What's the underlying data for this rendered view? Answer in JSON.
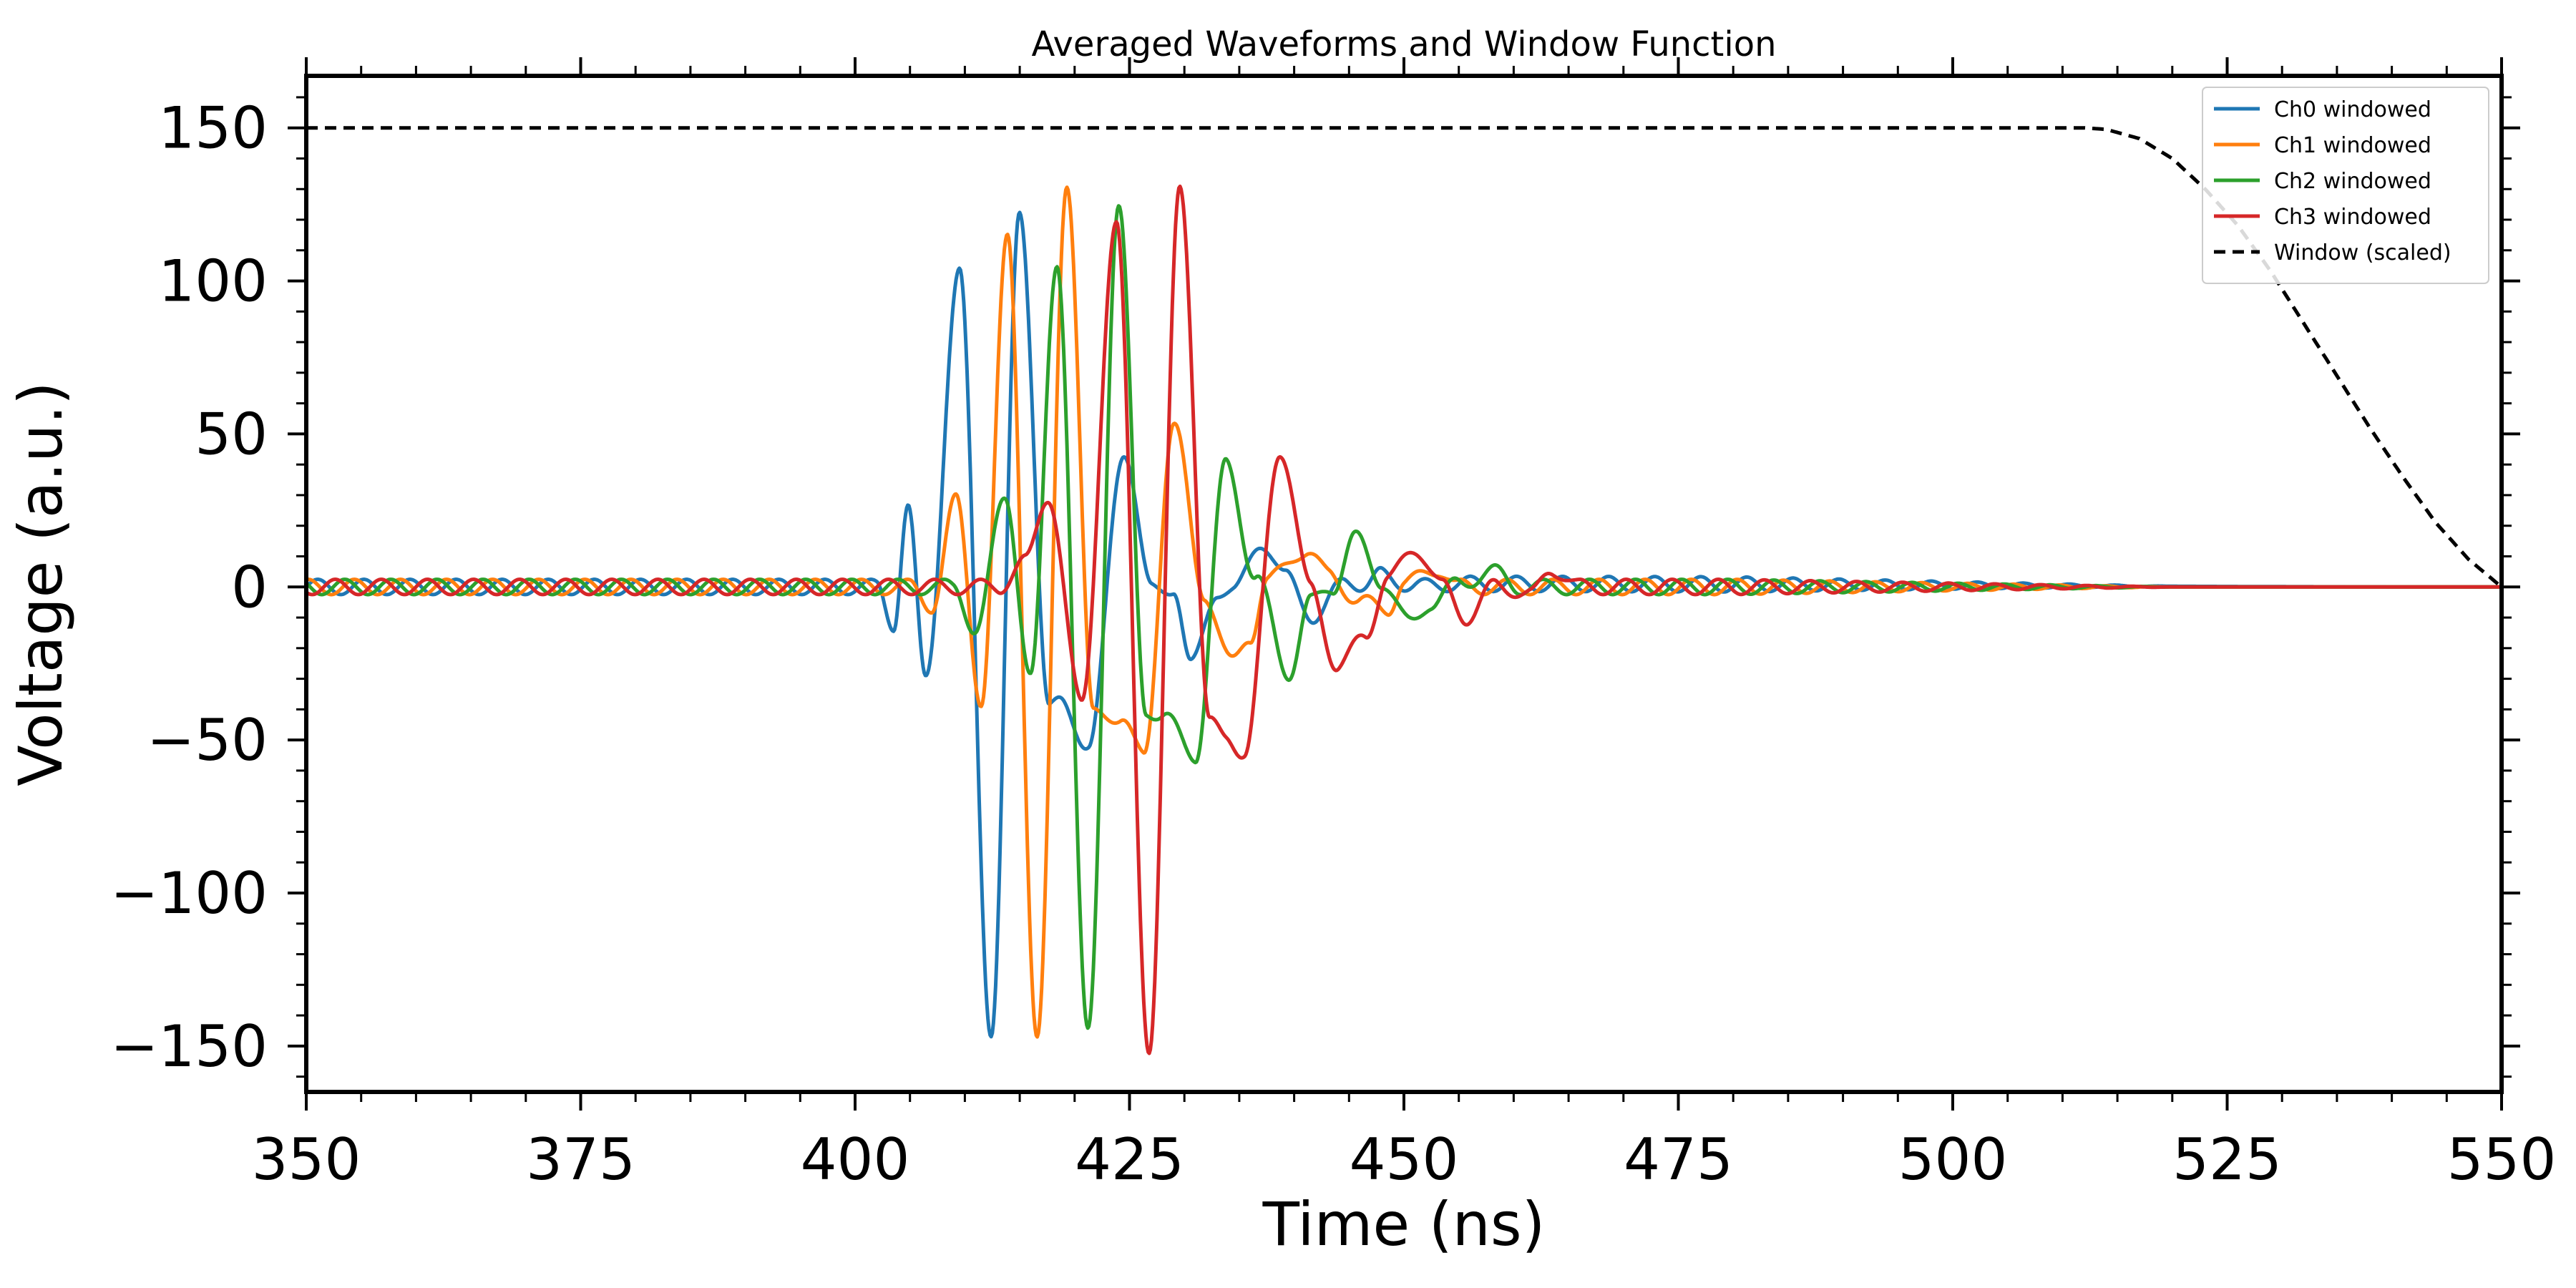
{
  "chart_data": {
    "type": "line",
    "title": "Averaged Waveforms and Window Function",
    "xlabel": "Time (ns)",
    "ylabel": "Voltage (a.u.)",
    "xlim": [
      350,
      550
    ],
    "ylim": [
      -165,
      167
    ],
    "xticks": [
      350,
      375,
      400,
      425,
      450,
      475,
      500,
      525,
      550
    ],
    "xtick_labels": [
      "350",
      "375",
      "400",
      "425",
      "450",
      "475",
      "500",
      "525",
      "550"
    ],
    "yticks": [
      -150,
      -100,
      -50,
      0,
      50,
      100,
      150
    ],
    "ytick_labels": [
      "−150",
      "−100",
      "−50",
      "0",
      "50",
      "100",
      "150"
    ],
    "grid": false,
    "legend_position": "top-right",
    "series": [
      {
        "name": "Ch0 windowed",
        "color": "#1f77b4",
        "style": "solid",
        "pulse_center": 415.0,
        "ringing": [
          [
            350,
            0
          ],
          [
            402,
            0
          ],
          [
            403.5,
            -12
          ],
          [
            404.8,
            26
          ],
          [
            406.4,
            -30
          ],
          [
            409.5,
            102
          ],
          [
            412.4,
            -145
          ],
          [
            415.0,
            122
          ],
          [
            417.7,
            -40
          ],
          [
            418.8,
            -38
          ],
          [
            421.3,
            -52
          ],
          [
            424.5,
            45
          ],
          [
            427.0,
            -1
          ],
          [
            429.0,
            0
          ],
          [
            430.6,
            -26
          ],
          [
            433.0,
            -1
          ],
          [
            434.5,
            -2
          ],
          [
            437.0,
            15
          ],
          [
            439.2,
            3
          ],
          [
            442.0,
            -10
          ],
          [
            444.8,
            3
          ],
          [
            446.5,
            0
          ],
          [
            448.0,
            4
          ],
          [
            451.0,
            0
          ],
          [
            454.0,
            1
          ],
          [
            550,
            0
          ]
        ]
      },
      {
        "name": "Ch1 windowed",
        "color": "#ff7f0e",
        "style": "solid",
        "pulse_center": 419.5,
        "ringing": [
          [
            350,
            0
          ],
          [
            405,
            0
          ],
          [
            407.0,
            -6
          ],
          [
            409.2,
            28
          ],
          [
            411.5,
            -37
          ],
          [
            413.9,
            114
          ],
          [
            416.6,
            -148
          ],
          [
            419.3,
            133
          ],
          [
            421.7,
            -42
          ],
          [
            424.2,
            -42
          ],
          [
            426.3,
            -56
          ],
          [
            429.0,
            53
          ],
          [
            431.8,
            -2
          ],
          [
            434.3,
            -25
          ],
          [
            436.0,
            -16
          ],
          [
            437.5,
            2
          ],
          [
            441.0,
            12
          ],
          [
            443.2,
            4
          ],
          [
            446.0,
            -5
          ],
          [
            448.5,
            -7
          ],
          [
            450.0,
            1
          ],
          [
            453.0,
            6
          ],
          [
            455.0,
            0
          ],
          [
            550,
            0
          ]
        ]
      },
      {
        "name": "Ch2 windowed",
        "color": "#2ca02c",
        "style": "solid",
        "pulse_center": 424.0,
        "ringing": [
          [
            350,
            0
          ],
          [
            409,
            0
          ],
          [
            411.0,
            -14
          ],
          [
            413.7,
            30
          ],
          [
            416.0,
            -30
          ],
          [
            418.4,
            107
          ],
          [
            421.2,
            -146
          ],
          [
            424.0,
            124
          ],
          [
            426.5,
            -40
          ],
          [
            428.0,
            -42
          ],
          [
            431.0,
            -55
          ],
          [
            433.8,
            40
          ],
          [
            436.5,
            3
          ],
          [
            439.5,
            -28
          ],
          [
            441.5,
            -5
          ],
          [
            443.5,
            0
          ],
          [
            445.5,
            16
          ],
          [
            448.0,
            2
          ],
          [
            450.5,
            -12
          ],
          [
            452.5,
            -5
          ],
          [
            455.0,
            1
          ],
          [
            458.0,
            5
          ],
          [
            460.5,
            0
          ],
          [
            550,
            0
          ]
        ]
      },
      {
        "name": "Ch3 windowed",
        "color": "#d62728",
        "style": "solid",
        "pulse_center": 428.5,
        "ringing": [
          [
            350,
            0
          ],
          [
            413,
            0
          ],
          [
            415.5,
            8
          ],
          [
            417.6,
            30
          ],
          [
            420.6,
            -38
          ],
          [
            423.8,
            117
          ],
          [
            426.8,
            -151
          ],
          [
            429.6,
            132
          ],
          [
            432.3,
            -45
          ],
          [
            433.8,
            -48
          ],
          [
            435.5,
            -55
          ],
          [
            438.7,
            45
          ],
          [
            441.5,
            0
          ],
          [
            444.0,
            -27
          ],
          [
            446.5,
            -15
          ],
          [
            448.5,
            2
          ],
          [
            451.0,
            13
          ],
          [
            453.5,
            0
          ],
          [
            455.8,
            -10
          ],
          [
            458.5,
            1
          ],
          [
            461.5,
            -3
          ],
          [
            463.5,
            6
          ],
          [
            466.0,
            0
          ],
          [
            550,
            0
          ]
        ]
      },
      {
        "name": "Window (scaled)",
        "color": "#000000",
        "style": "dashed",
        "x": [
          350,
          512,
          514,
          517,
          520,
          523,
          526,
          529,
          532,
          535,
          538,
          541,
          544,
          547,
          550
        ],
        "y": [
          150,
          150,
          149.5,
          146.5,
          140,
          130,
          118,
          103,
          86,
          69,
          52,
          36,
          21,
          9,
          0
        ]
      }
    ],
    "background_ringing": {
      "range": [
        350,
        520
      ],
      "amplitude": 2.5,
      "period_ns": 4.2
    }
  }
}
